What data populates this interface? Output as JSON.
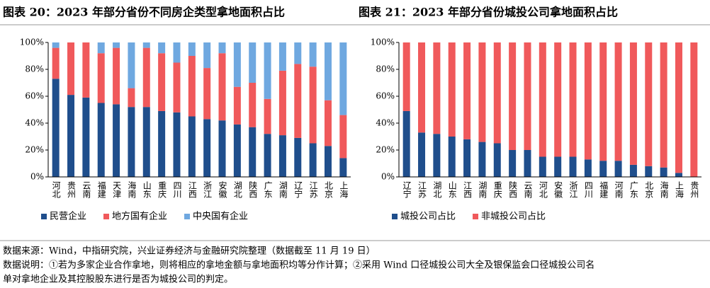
{
  "chart_data": [
    {
      "type": "bar",
      "stacked": true,
      "title": "图表 20：2023 年部分省份不同房企类型拿地面积占比",
      "categories": [
        "河北",
        "贵州",
        "云南",
        "福建",
        "天津",
        "海南",
        "山东",
        "重庆",
        "四川",
        "江西",
        "浙江",
        "安徽",
        "湖北",
        "陕西",
        "广东",
        "湖南",
        "辽宁",
        "江苏",
        "北京",
        "上海"
      ],
      "series": [
        {
          "name": "民营企业",
          "color": "#1f4e8c",
          "values": [
            73,
            61,
            59,
            55,
            54,
            52,
            52,
            49,
            48,
            45,
            43,
            42,
            39,
            37,
            32,
            31,
            29,
            25,
            23,
            14
          ]
        },
        {
          "name": "地方国有企业",
          "color": "#f0595b",
          "values": [
            23,
            39,
            41,
            37,
            42,
            14,
            44,
            43,
            37,
            45,
            38,
            50,
            28,
            33,
            26,
            48,
            55,
            57,
            34,
            32
          ]
        },
        {
          "name": "中央国有企业",
          "color": "#6fa8e0",
          "values": [
            4,
            0,
            0,
            8,
            4,
            34,
            4,
            8,
            15,
            10,
            19,
            8,
            33,
            30,
            42,
            21,
            16,
            18,
            43,
            54
          ]
        }
      ],
      "ylim": [
        0,
        100
      ],
      "yticks": [
        {
          "value": 0,
          "label": "0%"
        },
        {
          "value": 20,
          "label": "20%"
        },
        {
          "value": 40,
          "label": "40%"
        },
        {
          "value": 60,
          "label": "60%"
        },
        {
          "value": 80,
          "label": "80%"
        },
        {
          "value": 100,
          "label": "100%"
        }
      ],
      "legend": "bottom"
    },
    {
      "type": "bar",
      "stacked": true,
      "title": "图表 21：2023 年部分省份城投公司拿地面积占比",
      "categories": [
        "辽宁",
        "江苏",
        "湖北",
        "山东",
        "江西",
        "湖南",
        "重庆",
        "陕西",
        "云南",
        "河北",
        "安徽",
        "浙江",
        "四川",
        "福建",
        "河南",
        "广东",
        "北京",
        "海南",
        "上海",
        "贵州"
      ],
      "series": [
        {
          "name": "城投公司占比",
          "color": "#1f4e8c",
          "values": [
            49,
            33,
            32,
            30,
            28,
            26,
            25,
            20,
            20,
            15,
            15,
            15,
            13,
            12,
            12,
            9,
            8,
            7,
            3,
            0
          ]
        },
        {
          "name": "非城投公司占比",
          "color": "#f0595b",
          "values": [
            51,
            67,
            68,
            70,
            72,
            74,
            75,
            80,
            80,
            85,
            85,
            85,
            87,
            88,
            88,
            91,
            92,
            93,
            97,
            100
          ]
        }
      ],
      "ylim": [
        0,
        100
      ],
      "yticks": [
        {
          "value": 0,
          "label": "0%"
        },
        {
          "value": 20,
          "label": "20%"
        },
        {
          "value": 40,
          "label": "40%"
        },
        {
          "value": 60,
          "label": "60%"
        },
        {
          "value": 80,
          "label": "80%"
        },
        {
          "value": 100,
          "label": "100%"
        }
      ],
      "legend": "bottom"
    }
  ],
  "notes": [
    "数据来源：Wind，中指研究院，兴业证券经济与金融研究院整理（数据截至 11 月 19 日）",
    "数据说明：①若为多家企业合作拿地，则将相应的拿地金额与拿地面积均等分作计算；②采用 Wind 口径城投公司大全及银保监会口径城投公司名",
    "单对拿地企业及其控股股东进行是否为城投公司的判定。"
  ]
}
